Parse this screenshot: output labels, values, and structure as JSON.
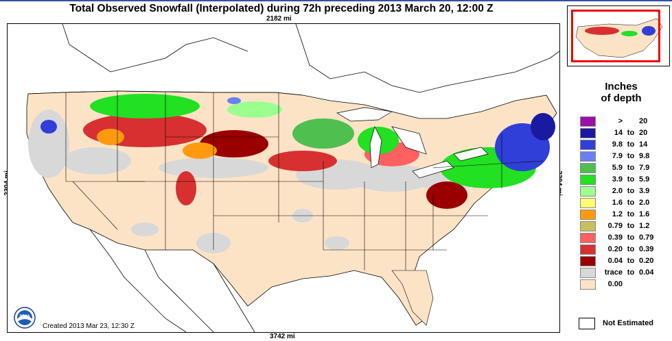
{
  "title": "Total Observed Snowfall (Interpolated) during 72h preceding 2013 March 20, 12:00 Z",
  "dimensions": {
    "top": "2182 mi",
    "bottom": "3742 mi",
    "left": "2304 mi",
    "right": "2304 mi"
  },
  "created": "Created 2013 Mar 23, 12:30 Z",
  "logo_text": "NOAA",
  "legend": {
    "title_line1": "Inches",
    "title_line2": "of depth",
    "rows": [
      {
        "lo": ">",
        "to": "",
        "hi": "20",
        "color": "#9a10a8"
      },
      {
        "lo": "14",
        "to": "to",
        "hi": "20",
        "color": "#1a1aa0"
      },
      {
        "lo": "9.8",
        "to": "to",
        "hi": "14",
        "color": "#2f3fd8"
      },
      {
        "lo": "7.9",
        "to": "to",
        "hi": "9.8",
        "color": "#6a7ff0"
      },
      {
        "lo": "5.9",
        "to": "to",
        "hi": "7.9",
        "color": "#4fbf4f"
      },
      {
        "lo": "3.9",
        "to": "to",
        "hi": "5.9",
        "color": "#22e022"
      },
      {
        "lo": "2.0",
        "to": "to",
        "hi": "3.9",
        "color": "#9bff8f"
      },
      {
        "lo": "1.6",
        "to": "to",
        "hi": "2.0",
        "color": "#ffff70"
      },
      {
        "lo": "1.2",
        "to": "to",
        "hi": "1.6",
        "color": "#ff9a10"
      },
      {
        "lo": "0.79",
        "to": "to",
        "hi": "1.2",
        "color": "#c8c060"
      },
      {
        "lo": "0.39",
        "to": "to",
        "hi": "0.79",
        "color": "#ff6060"
      },
      {
        "lo": "0.20",
        "to": "to",
        "hi": "0.39",
        "color": "#d83030"
      },
      {
        "lo": "0.04",
        "to": "to",
        "hi": "0.20",
        "color": "#9a0000"
      },
      {
        "lo": "trace",
        "to": "to",
        "hi": "0.04",
        "color": "#d8d8d8"
      },
      {
        "lo": "0.00",
        "to": "",
        "hi": "",
        "color": "#fde3c6"
      }
    ],
    "not_estimated": "Not Estimated"
  },
  "colors": {
    "base": "#fde3c6",
    "trace": "#d8d8d8",
    "water": "#ffffff",
    "frame_accent": "#3a4fa0",
    "inset_box": "#ee0000"
  }
}
